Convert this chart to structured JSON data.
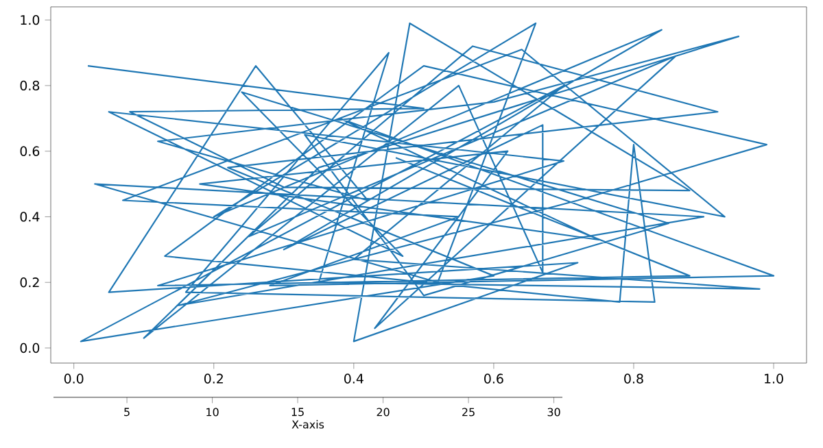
{
  "chart_data": {
    "type": "line",
    "color": "#1f77b4",
    "marker": "none",
    "line_style": "solid",
    "grid": false,
    "x": [
      0.02,
      0.5,
      0.08,
      0.3,
      0.88,
      0.48,
      0.4,
      0.72,
      0.05,
      0.26,
      0.42,
      0.12,
      0.6,
      0.95,
      0.35,
      0.1,
      0.55,
      0.67,
      0.67,
      0.3,
      0.84,
      0.2,
      0.66,
      0.52,
      0.03,
      0.9,
      0.15,
      0.72,
      0.99,
      0.5,
      0.13,
      0.78,
      0.8,
      0.83,
      0.16,
      0.45,
      0.35,
      0.98,
      0.4,
      0.7,
      0.01,
      0.6,
      0.22,
      0.92,
      0.57,
      0.25,
      0.86,
      0.43,
      0.62,
      0.18,
      0.75,
      0.38,
      1.0,
      0.28,
      0.55,
      0.07,
      0.64,
      0.93,
      0.33,
      0.5,
      0.85,
      0.24,
      0.47,
      0.05,
      0.7,
      0.12,
      0.88,
      0.46
    ],
    "values": [
      0.86,
      0.73,
      0.72,
      0.49,
      0.48,
      0.99,
      0.02,
      0.26,
      0.17,
      0.86,
      0.45,
      0.63,
      0.75,
      0.95,
      0.55,
      0.03,
      0.8,
      0.23,
      0.68,
      0.3,
      0.97,
      0.4,
      0.99,
      0.2,
      0.5,
      0.4,
      0.13,
      0.45,
      0.62,
      0.86,
      0.28,
      0.14,
      0.62,
      0.14,
      0.17,
      0.9,
      0.2,
      0.18,
      0.27,
      0.8,
      0.02,
      0.22,
      0.55,
      0.72,
      0.92,
      0.34,
      0.89,
      0.06,
      0.6,
      0.5,
      0.33,
      0.7,
      0.22,
      0.19,
      0.4,
      0.45,
      0.91,
      0.4,
      0.65,
      0.16,
      0.38,
      0.78,
      0.28,
      0.72,
      0.57,
      0.19,
      0.22,
      0.58
    ],
    "xlim": [
      -0.033,
      1.047
    ],
    "ylim": [
      -0.046,
      1.04
    ],
    "xticks": [
      {
        "value": 0,
        "label": "0.0"
      },
      {
        "value": 0.2,
        "label": "0.2"
      },
      {
        "value": 0.4,
        "label": "0.4"
      },
      {
        "value": 0.6,
        "label": "0.6"
      },
      {
        "value": 0.8,
        "label": "0.8"
      },
      {
        "value": 1.0,
        "label": "1.0"
      }
    ],
    "yticks": [
      {
        "value": 0,
        "label": "0.0"
      },
      {
        "value": 0.2,
        "label": "0.2"
      },
      {
        "value": 0.4,
        "label": "0.4"
      },
      {
        "value": 0.6,
        "label": "0.6"
      },
      {
        "value": 0.8,
        "label": "0.8"
      },
      {
        "value": 1.0,
        "label": "1.0"
      }
    ],
    "x2lim": [
      0.7,
      30.5
    ],
    "x2ticks": [
      5,
      10,
      15,
      20,
      25,
      30
    ],
    "x2label": "X-axis"
  }
}
